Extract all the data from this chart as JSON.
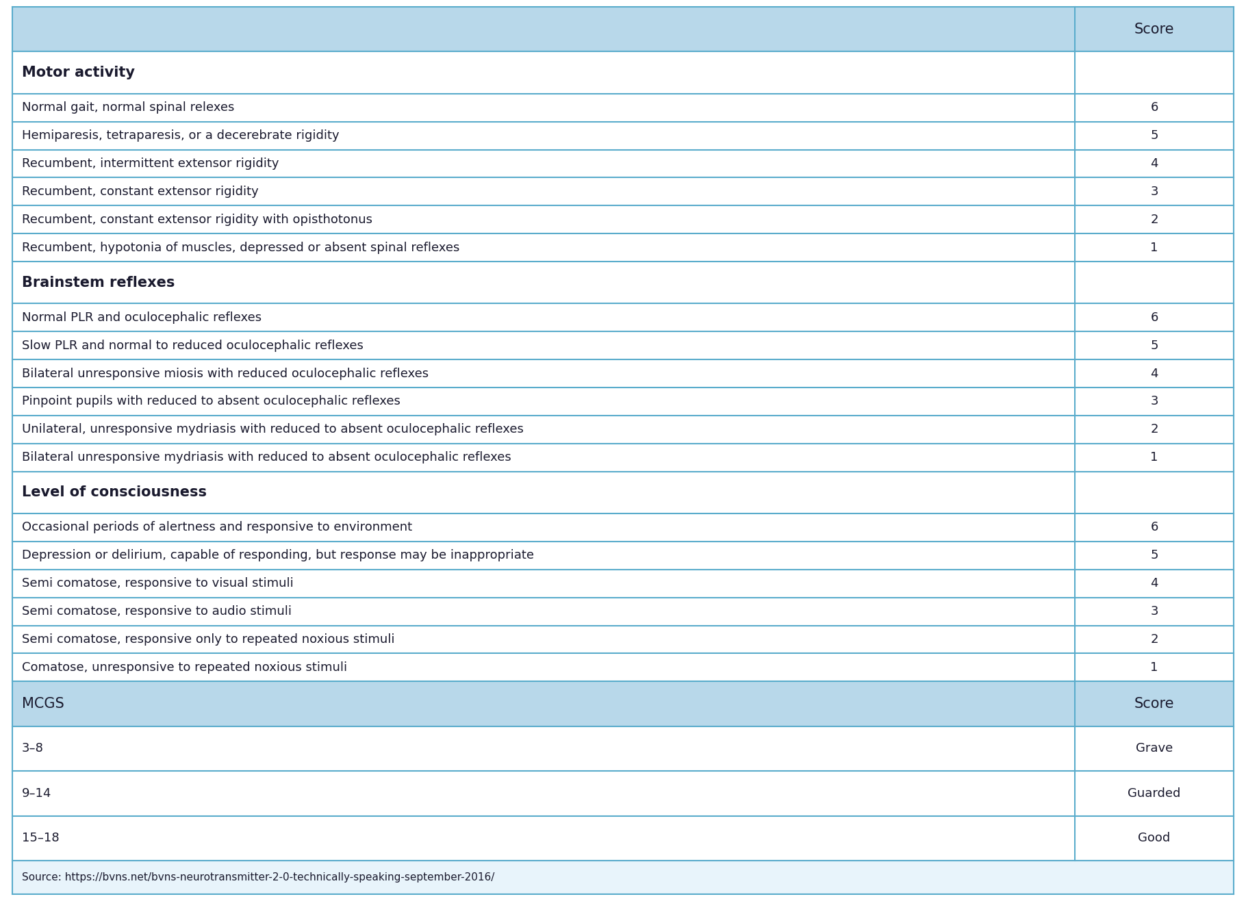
{
  "header_bg": "#b8d8ea",
  "header_text_color": "#1a1a2e",
  "section_header_bg": "#ffffff",
  "section_header_text_color": "#1a1a2e",
  "row_bg_white": "#ffffff",
  "row_bg_light": "#e8f4fb",
  "border_color": "#5aaccc",
  "outer_border_color": "#5aaccc",
  "source_text": "Source: https://bvns.net/bvns-neurotransmitter-2-0-technically-speaking-september-2016/",
  "col2_header": "Score",
  "sections": [
    {
      "header": "Motor activity",
      "rows": [
        [
          "Normal gait, normal spinal relexes",
          "6"
        ],
        [
          "Hemiparesis, tetraparesis, or a decerebrate rigidity",
          "5"
        ],
        [
          "Recumbent, intermittent extensor rigidity",
          "4"
        ],
        [
          "Recumbent, constant extensor rigidity",
          "3"
        ],
        [
          "Recumbent, constant extensor rigidity with opisthotonus",
          "2"
        ],
        [
          "Recumbent, hypotonia of muscles, depressed or absent spinal reflexes",
          "1"
        ]
      ]
    },
    {
      "header": "Brainstem reflexes",
      "rows": [
        [
          "Normal PLR and oculocephalic reflexes",
          "6"
        ],
        [
          "Slow PLR and normal to reduced oculocephalic reflexes",
          "5"
        ],
        [
          "Bilateral unresponsive miosis with reduced oculocephalic reflexes",
          "4"
        ],
        [
          "Pinpoint pupils with reduced to absent oculocephalic reflexes",
          "3"
        ],
        [
          "Unilateral, unresponsive mydriasis with reduced to absent oculocephalic reflexes",
          "2"
        ],
        [
          "Bilateral unresponsive mydriasis with reduced to absent oculocephalic reflexes",
          "1"
        ]
      ]
    },
    {
      "header": "Level of consciousness",
      "rows": [
        [
          "Occasional periods of alertness and responsive to environment",
          "6"
        ],
        [
          "Depression or delirium, capable of responding, but response may be inappropriate",
          "5"
        ],
        [
          "Semi comatose, responsive to visual stimuli",
          "4"
        ],
        [
          "Semi comatose, responsive to audio stimuli",
          "3"
        ],
        [
          "Semi comatose, responsive only to repeated noxious stimuli",
          "2"
        ],
        [
          "Comatose, unresponsive to repeated noxious stimuli",
          "1"
        ]
      ]
    }
  ],
  "bottom_header": [
    "MCGS",
    "Score"
  ],
  "bottom_rows": [
    [
      "3–8",
      "Grave"
    ],
    [
      "9–14",
      "Guarded"
    ],
    [
      "15–18",
      "Good"
    ]
  ],
  "font_family": "DejaVu Sans",
  "font_size_top_header": 15,
  "font_size_section_header": 15,
  "font_size_data": 13,
  "font_size_bottom_header": 15,
  "font_size_bottom_data": 13,
  "font_size_source": 11
}
